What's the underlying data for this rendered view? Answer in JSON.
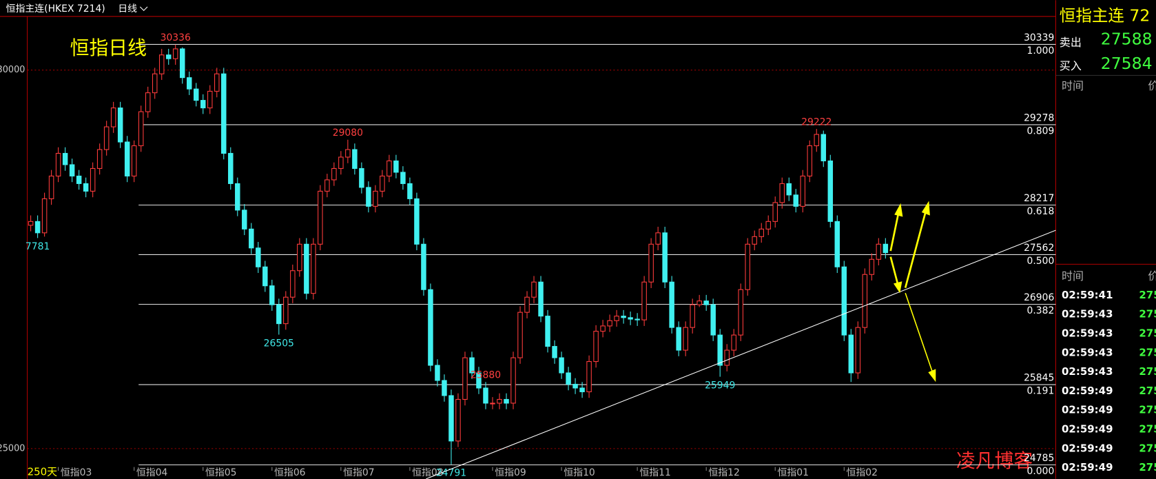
{
  "header": {
    "symbol": "恒指主连(HKEX 7214)",
    "period": "日线"
  },
  "chart_data": {
    "type": "candlestick",
    "title": "恒指日线",
    "period_label": "250天",
    "watermark": "凌凡博客",
    "up_color": "#ff3c3c",
    "down_color": "#40f0f0",
    "ylim": [
      24766,
      30709
    ],
    "yticks": [
      25000,
      30000
    ],
    "grid": true,
    "categories": [
      null,
      null,
      null,
      null,
      "恒指03",
      null,
      null,
      null,
      null,
      null,
      null,
      null,
      null,
      null,
      null,
      "恒指04",
      null,
      null,
      null,
      null,
      null,
      null,
      null,
      null,
      null,
      "恒指05",
      null,
      null,
      null,
      null,
      null,
      null,
      null,
      null,
      null,
      "恒指06",
      null,
      null,
      null,
      null,
      null,
      null,
      null,
      null,
      null,
      "恒指07",
      null,
      null,
      null,
      null,
      null,
      null,
      null,
      null,
      null,
      "恒指08",
      null,
      null,
      null,
      null,
      null,
      null,
      null,
      null,
      null,
      null,
      null,
      "恒指09",
      null,
      null,
      null,
      null,
      null,
      null,
      null,
      null,
      null,
      "恒指10",
      null,
      null,
      null,
      null,
      null,
      null,
      null,
      null,
      null,
      null,
      "恒指11",
      null,
      null,
      null,
      null,
      null,
      null,
      null,
      null,
      null,
      "恒指12",
      null,
      null,
      null,
      null,
      null,
      null,
      null,
      null,
      null,
      "恒指01",
      null,
      null,
      null,
      null,
      null,
      null,
      null,
      null,
      null,
      "恒指02",
      null,
      null,
      null,
      null,
      null,
      null
    ],
    "open": [
      27950,
      28000,
      27850,
      28300,
      28600,
      28900,
      28750,
      28600,
      28500,
      28400,
      28700,
      28950,
      29250,
      29500,
      29050,
      28600,
      29000,
      29450,
      29700,
      29950,
      30200,
      30150,
      30280,
      29900,
      29750,
      29600,
      29500,
      29720,
      29950,
      28900,
      28500,
      28150,
      27900,
      27650,
      27400,
      27150,
      26900,
      26650,
      27000,
      27350,
      27700,
      27050,
      27700,
      28400,
      28550,
      28700,
      28850,
      28950,
      28700,
      28450,
      28200,
      28400,
      28600,
      28800,
      28650,
      28500,
      28300,
      27700,
      27100,
      26100,
      25900,
      25700,
      25100,
      25650,
      26200,
      26000,
      25800,
      25600,
      25600,
      25650,
      25600,
      26200,
      26800,
      27000,
      27200,
      26750,
      26350,
      26200,
      26000,
      25850,
      25800,
      25750,
      26150,
      26550,
      26620,
      26690,
      26750,
      26730,
      26710,
      26700,
      27200,
      27700,
      27850,
      27200,
      26600,
      26300,
      26600,
      26900,
      26950,
      26900,
      26500,
      26100,
      26300,
      26500,
      27100,
      27700,
      27800,
      27900,
      28000,
      28250,
      28500,
      28350,
      28200,
      28600,
      29000,
      29150,
      28800,
      28000,
      27400,
      26500,
      26000,
      26600,
      27300,
      27500,
      27700
    ],
    "high": [
      28080,
      28080,
      28380,
      28680,
      28980,
      28980,
      28830,
      28680,
      28580,
      28780,
      29030,
      29330,
      29580,
      29580,
      29130,
      29070,
      29530,
      29780,
      30030,
      30280,
      30280,
      30336,
      30300,
      29980,
      29830,
      29680,
      29800,
      30030,
      30030,
      28980,
      28580,
      28230,
      27980,
      27730,
      27480,
      27230,
      26980,
      27080,
      27430,
      27780,
      27780,
      27780,
      28480,
      28630,
      28780,
      28930,
      29080,
      29030,
      28780,
      28530,
      28480,
      28680,
      28880,
      28880,
      28730,
      28580,
      28380,
      27780,
      27180,
      26180,
      25980,
      25780,
      25730,
      26280,
      26280,
      26080,
      25880,
      25680,
      25730,
      25730,
      26280,
      26880,
      27080,
      27280,
      27280,
      26830,
      26430,
      26280,
      26080,
      25930,
      25880,
      26230,
      26630,
      26700,
      26770,
      26830,
      26830,
      26810,
      26790,
      27280,
      27780,
      27930,
      27930,
      27280,
      26680,
      26680,
      26980,
      27030,
      27030,
      26980,
      26580,
      26380,
      26580,
      27180,
      27780,
      27880,
      27980,
      28080,
      28330,
      28580,
      28580,
      28430,
      28680,
      29070,
      29222,
      29200,
      28880,
      28080,
      27480,
      26580,
      26680,
      27380,
      27580,
      27780,
      27780
    ],
    "low": [
      27870,
      27781,
      27800,
      28220,
      28520,
      28670,
      28520,
      28420,
      28320,
      28320,
      28620,
      28870,
      29170,
      28970,
      28520,
      28520,
      28920,
      29370,
      29620,
      29870,
      30070,
      30070,
      29820,
      29670,
      29520,
      29420,
      29420,
      29640,
      28820,
      28420,
      28070,
      27820,
      27570,
      27320,
      27070,
      26820,
      26505,
      26570,
      26920,
      27270,
      26970,
      26970,
      27620,
      28320,
      28470,
      28620,
      28770,
      28620,
      28370,
      28120,
      28120,
      28320,
      28520,
      28570,
      28420,
      28220,
      27620,
      27020,
      26020,
      25820,
      25620,
      24791,
      25020,
      25570,
      25920,
      25720,
      25520,
      25520,
      25520,
      25520,
      25520,
      26120,
      26720,
      26920,
      26670,
      26270,
      26120,
      25920,
      25770,
      25720,
      25670,
      25670,
      26070,
      26470,
      26540,
      26610,
      26650,
      26630,
      26620,
      26620,
      27120,
      27620,
      27120,
      26520,
      26220,
      26220,
      26520,
      26870,
      26820,
      26420,
      25949,
      26020,
      26220,
      26420,
      27020,
      27620,
      27720,
      27820,
      27920,
      28170,
      28270,
      28120,
      28120,
      28520,
      28920,
      28720,
      27920,
      27320,
      26420,
      25880,
      25920,
      26520,
      27220,
      27420,
      27510
    ],
    "close": [
      28000,
      27850,
      28300,
      28600,
      28900,
      28750,
      28600,
      28500,
      28400,
      28700,
      28950,
      29250,
      29500,
      29050,
      28600,
      29000,
      29450,
      29700,
      29950,
      30200,
      30150,
      30280,
      29900,
      29750,
      29600,
      29500,
      29720,
      29950,
      28900,
      28500,
      28150,
      27900,
      27650,
      27400,
      27150,
      26900,
      26650,
      27000,
      27350,
      27700,
      27050,
      27700,
      28400,
      28550,
      28700,
      28850,
      28950,
      28700,
      28450,
      28200,
      28400,
      28600,
      28800,
      28650,
      28500,
      28300,
      27700,
      27100,
      26100,
      25900,
      25700,
      25100,
      25650,
      26200,
      26000,
      25800,
      25600,
      25600,
      25650,
      25600,
      26200,
      26800,
      27000,
      27200,
      26750,
      26350,
      26200,
      26000,
      25850,
      25800,
      25750,
      26150,
      26550,
      26620,
      26690,
      26750,
      26730,
      26710,
      26700,
      27200,
      27700,
      27850,
      27200,
      26600,
      26300,
      26600,
      26900,
      26950,
      26900,
      26500,
      26100,
      26300,
      26500,
      27100,
      27700,
      27800,
      27900,
      28000,
      28250,
      28500,
      28350,
      28200,
      28600,
      29000,
      29150,
      28800,
      28000,
      27400,
      26500,
      26000,
      26600,
      27300,
      27500,
      27700,
      27588
    ],
    "annotations": [
      "30336",
      "29080",
      "29222",
      "7781",
      "26505",
      "24791",
      "25949",
      "25880"
    ],
    "fib_levels": [
      {
        "price": 30339,
        "ratio": {
          "value": 1,
          "label": "1.000"
        }
      },
      {
        "price": 29278,
        "ratio": 0.809
      },
      {
        "price": 28217,
        "ratio": 0.618
      },
      {
        "price": 27562,
        "ratio": {
          "value": 0.5,
          "label": "0.500"
        }
      },
      {
        "price": 26906,
        "ratio": 0.382
      },
      {
        "price": 25845,
        "ratio": 0.191
      },
      {
        "price": 24785,
        "ratio": {
          "value": 0,
          "label": "0.000"
        }
      }
    ]
  },
  "quote_panel": {
    "title": "恒指主连 72",
    "sell_label": "卖出",
    "sell": 27588,
    "buy_label": "买入",
    "buy": 27584,
    "headers": [
      "时间",
      "价"
    ],
    "trade_headers": [
      "时间",
      "价"
    ],
    "trades": [
      [
        "02:59:41",
        "275"
      ],
      [
        "02:59:43",
        "275"
      ],
      [
        "02:59:43",
        "275"
      ],
      [
        "02:59:43",
        "275"
      ],
      [
        "02:59:43",
        "275"
      ],
      [
        "02:59:49",
        "275"
      ],
      [
        "02:59:49",
        "275"
      ],
      [
        "02:59:49",
        "275"
      ],
      [
        "02:59:49",
        "275"
      ],
      [
        "02:59:49",
        "275"
      ]
    ]
  }
}
